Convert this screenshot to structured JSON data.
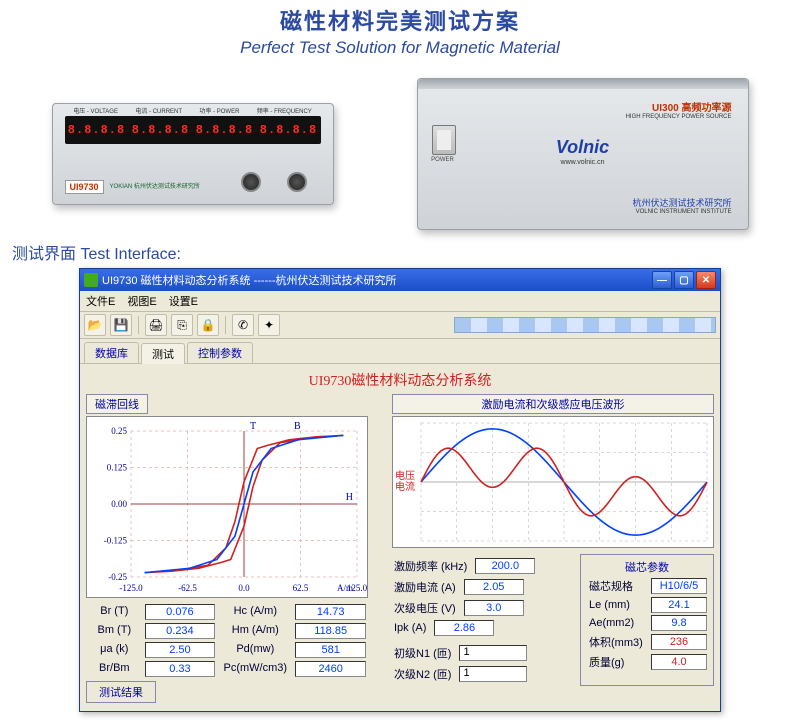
{
  "header": {
    "cn": "磁性材料完美测试方案",
    "en": "Perfect Test Solution for Magnetic Material"
  },
  "device_left": {
    "model": "UI9730",
    "segs": [
      "8.8.8.8",
      "8.8.8.8",
      "8.8.8.8",
      "8.8.8.8"
    ],
    "seg_labels": [
      "电压 - VOLTAGE",
      "电流 - CURRENT",
      "功率 - POWER",
      "频率 - FREQUENCY"
    ],
    "logo": "YOKIAN\n杭州伏达测试技术研究所"
  },
  "device_right": {
    "model": "UI300 高频功率源",
    "model_en": "HIGH FREQUENCY POWER SOURCE",
    "brand": "Volnic",
    "brand_sub": "www.volnic.cn",
    "inst": "杭州伏达测试技术研究所",
    "inst_en": "VOLNIC INSTRUMENT INSTITUTE"
  },
  "section_title": "测试界面  Test Interface:",
  "win": {
    "title": "UI9730 磁性材料动态分析系统        ------杭州伏达测试技术研究所",
    "menus": [
      "文件E",
      "视图E",
      "设置E"
    ],
    "tabs": [
      "数据库",
      "测试",
      "控制参数"
    ],
    "content_title": "UI9730磁性材料动态分析系统",
    "left_group": "磁滞回线",
    "right_group": "激励电流和次级感应电压波形"
  },
  "hysteresis": {
    "xlim": [
      -125,
      125
    ],
    "ylim": [
      -0.25,
      0.25
    ],
    "xticks": [
      -125,
      -62.5,
      0,
      62.5,
      125
    ],
    "yticks": [
      -0.25,
      -0.125,
      0,
      0.125,
      0.25
    ],
    "xlabel": "A/m",
    "ylabel": "T",
    "b_label": "B",
    "h_label": "H",
    "curve1_color": "#d02020",
    "curve2_color": "#0040ff",
    "grid_color": "#d88080",
    "axis_color": "#a04040",
    "bg": "#ffffff",
    "line_w": 1.6,
    "curve1_pts": [
      [
        -110,
        -0.235
      ],
      [
        -80,
        -0.23
      ],
      [
        -50,
        -0.22
      ],
      [
        -25,
        -0.2
      ],
      [
        -14.7,
        -0.19
      ],
      [
        0,
        -0.076
      ],
      [
        10,
        0.06
      ],
      [
        20,
        0.15
      ],
      [
        40,
        0.21
      ],
      [
        70,
        0.225
      ],
      [
        110,
        0.235
      ]
    ],
    "curve1_pts_back": [
      [
        110,
        0.235
      ],
      [
        80,
        0.23
      ],
      [
        50,
        0.22
      ],
      [
        25,
        0.2
      ],
      [
        14.7,
        0.19
      ],
      [
        0,
        0.076
      ],
      [
        -10,
        -0.06
      ],
      [
        -20,
        -0.15
      ],
      [
        -40,
        -0.21
      ],
      [
        -70,
        -0.225
      ],
      [
        -110,
        -0.235
      ]
    ],
    "curve2_pts": [
      [
        -110,
        -0.235
      ],
      [
        -60,
        -0.22
      ],
      [
        -30,
        -0.19
      ],
      [
        -10,
        -0.11
      ],
      [
        0,
        0
      ],
      [
        10,
        0.11
      ],
      [
        30,
        0.19
      ],
      [
        60,
        0.22
      ],
      [
        110,
        0.235
      ]
    ]
  },
  "params_left": [
    {
      "k": "Br (T)",
      "v": "0.076"
    },
    {
      "k": "Hc (A/m)",
      "v": "14.73"
    },
    {
      "k": "Bm (T)",
      "v": "0.234"
    },
    {
      "k": "Hm (A/m)",
      "v": "118.85"
    },
    {
      "k": "μa (k)",
      "v": "2.50"
    },
    {
      "k": "Pd(mw)",
      "v": "581"
    },
    {
      "k": "Br/Bm",
      "v": "0.33"
    },
    {
      "k": "Pc(mW/cm3)",
      "v": "2460"
    }
  ],
  "result_btn": "测试结果",
  "waveform": {
    "bg": "#ffffff",
    "grid_color": "#b0b0b0",
    "blue": "#0040ff",
    "red": "#d02020",
    "xlim": [
      0,
      6.2832
    ],
    "ylim": [
      -1.1,
      1.1
    ],
    "label1": "电压",
    "label2": "电流"
  },
  "excite": [
    {
      "k": "激励频率 (kHz)",
      "v": "200.0"
    },
    {
      "k": "激励电流 (A)",
      "v": "2.05"
    },
    {
      "k": "次级电压 (V)",
      "v": "3.0"
    },
    {
      "k": "Ipk  (A)",
      "v": "2.86"
    }
  ],
  "core": {
    "title": "磁芯参数",
    "rows": [
      {
        "k": "磁芯规格",
        "v": "H10/6/5"
      },
      {
        "k": "Le (mm)",
        "v": "24.1"
      },
      {
        "k": "Ae(mm2)",
        "v": "9.8"
      },
      {
        "k": "体积(mm3)",
        "v": "236",
        "red": true
      },
      {
        "k": "质量(g)",
        "v": "4.0",
        "red": true
      }
    ]
  },
  "ns": {
    "n1_k": "初级N1 (匝)",
    "n1_v": "1",
    "n2_k": "次级N2 (匝)",
    "n2_v": "1"
  }
}
